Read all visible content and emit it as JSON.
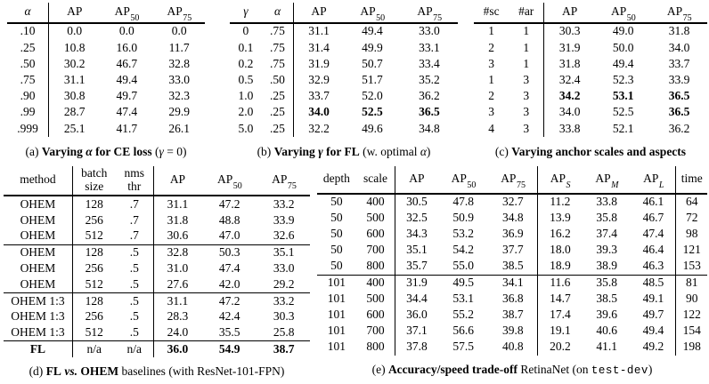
{
  "page": {
    "background": "#ffffff",
    "text_color": "#000000"
  },
  "panels": [
    {
      "id": "a",
      "headers": [
        {
          "t": "α",
          "i": true
        },
        {
          "t": "AP"
        },
        {
          "t": "AP",
          "sub": "50"
        },
        {
          "t": "AP",
          "sub": "75"
        }
      ],
      "col_borders": [
        0
      ],
      "rules_after": [],
      "bold": {},
      "rows": [
        [
          ".10",
          "0.0",
          "0.0",
          "0.0"
        ],
        [
          ".25",
          "10.8",
          "16.0",
          "11.7"
        ],
        [
          ".50",
          "30.2",
          "46.7",
          "32.8"
        ],
        [
          ".75",
          "31.1",
          "49.4",
          "33.0"
        ],
        [
          ".90",
          "30.8",
          "49.7",
          "32.3"
        ],
        [
          ".99",
          "28.7",
          "47.4",
          "29.9"
        ],
        [
          ".999",
          "25.1",
          "41.7",
          "26.1"
        ]
      ],
      "caption": [
        {
          "t": "(a) "
        },
        {
          "t": "Varying ",
          "b": true
        },
        {
          "t": "α",
          "b": true,
          "i": true
        },
        {
          "t": " for CE loss",
          "b": true
        },
        {
          "t": " ("
        },
        {
          "t": "γ",
          "i": true
        },
        {
          "t": " = 0)"
        }
      ]
    },
    {
      "id": "b",
      "headers": [
        {
          "t": "γ",
          "i": true
        },
        {
          "t": "α",
          "i": true
        },
        {
          "t": "AP"
        },
        {
          "t": "AP",
          "sub": "50"
        },
        {
          "t": "AP",
          "sub": "75"
        }
      ],
      "col_borders": [
        1
      ],
      "rules_after": [],
      "bold": {
        "5": [
          2,
          3,
          4
        ]
      },
      "rows": [
        [
          "0",
          ".75",
          "31.1",
          "49.4",
          "33.0"
        ],
        [
          "0.1",
          ".75",
          "31.4",
          "49.9",
          "33.1"
        ],
        [
          "0.2",
          ".75",
          "31.9",
          "50.7",
          "33.4"
        ],
        [
          "0.5",
          ".50",
          "32.9",
          "51.7",
          "35.2"
        ],
        [
          "1.0",
          ".25",
          "33.7",
          "52.0",
          "36.2"
        ],
        [
          "2.0",
          ".25",
          "34.0",
          "52.5",
          "36.5"
        ],
        [
          "5.0",
          ".25",
          "32.2",
          "49.6",
          "34.8"
        ]
      ],
      "caption": [
        {
          "t": "(b) "
        },
        {
          "t": "Varying ",
          "b": true
        },
        {
          "t": "γ",
          "b": true,
          "i": true
        },
        {
          "t": " for FL",
          "b": true
        },
        {
          "t": " (w. optimal "
        },
        {
          "t": "α",
          "i": true
        },
        {
          "t": ")"
        }
      ]
    },
    {
      "id": "c",
      "headers": [
        {
          "t": "#sc"
        },
        {
          "t": "#ar"
        },
        {
          "t": "AP"
        },
        {
          "t": "AP",
          "sub": "50"
        },
        {
          "t": "AP",
          "sub": "75"
        }
      ],
      "col_borders": [
        1
      ],
      "rules_after": [],
      "bold": {
        "4": [
          2,
          3,
          4
        ],
        "5": [
          4
        ]
      },
      "rows": [
        [
          "1",
          "1",
          "30.3",
          "49.0",
          "31.8"
        ],
        [
          "2",
          "1",
          "31.9",
          "50.0",
          "34.0"
        ],
        [
          "3",
          "1",
          "31.8",
          "49.4",
          "33.7"
        ],
        [
          "1",
          "3",
          "32.4",
          "52.3",
          "33.9"
        ],
        [
          "2",
          "3",
          "34.2",
          "53.1",
          "36.5"
        ],
        [
          "3",
          "3",
          "34.0",
          "52.5",
          "36.5"
        ],
        [
          "4",
          "3",
          "33.8",
          "52.1",
          "36.2"
        ]
      ],
      "caption": [
        {
          "t": "(c) "
        },
        {
          "t": "Varying anchor scales and aspects",
          "b": true
        }
      ]
    },
    {
      "id": "d",
      "headers": [
        {
          "t": "method"
        },
        {
          "lines": [
            "batch",
            "size"
          ]
        },
        {
          "lines": [
            "nms",
            "thr"
          ]
        },
        {
          "t": "AP"
        },
        {
          "t": "AP",
          "sub": "50"
        },
        {
          "t": "AP",
          "sub": "75"
        }
      ],
      "col_borders": [
        0,
        2
      ],
      "rules_after": [
        2,
        5,
        8
      ],
      "bold": {
        "9": [
          0,
          3,
          4,
          5
        ]
      },
      "rows": [
        [
          "OHEM",
          "128",
          ".7",
          "31.1",
          "47.2",
          "33.2"
        ],
        [
          "OHEM",
          "256",
          ".7",
          "31.8",
          "48.8",
          "33.9"
        ],
        [
          "OHEM",
          "512",
          ".7",
          "30.6",
          "47.0",
          "32.6"
        ],
        [
          "OHEM",
          "128",
          ".5",
          "32.8",
          "50.3",
          "35.1"
        ],
        [
          "OHEM",
          "256",
          ".5",
          "31.0",
          "47.4",
          "33.0"
        ],
        [
          "OHEM",
          "512",
          ".5",
          "27.6",
          "42.0",
          "29.2"
        ],
        [
          "OHEM 1:3",
          "128",
          ".5",
          "31.1",
          "47.2",
          "33.2"
        ],
        [
          "OHEM 1:3",
          "256",
          ".5",
          "28.3",
          "42.4",
          "30.3"
        ],
        [
          "OHEM 1:3",
          "512",
          ".5",
          "24.0",
          "35.5",
          "25.8"
        ],
        [
          "FL",
          "n/a",
          "n/a",
          "36.0",
          "54.9",
          "38.7"
        ]
      ],
      "caption": [
        {
          "t": "(d) "
        },
        {
          "t": "FL",
          "b": true
        },
        {
          "t": " "
        },
        {
          "t": "vs.",
          "b": true,
          "i": true
        },
        {
          "t": " OHEM",
          "b": true
        },
        {
          "t": " baselines (with ResNet-101-FPN)"
        }
      ]
    },
    {
      "id": "e",
      "headers": [
        {
          "t": "depth"
        },
        {
          "t": "scale"
        },
        {
          "t": "AP"
        },
        {
          "t": "AP",
          "sub": "50"
        },
        {
          "t": "AP",
          "sub": "75"
        },
        {
          "t": "AP",
          "sub": "S",
          "subi": true
        },
        {
          "t": "AP",
          "sub": "M",
          "subi": true
        },
        {
          "t": "AP",
          "sub": "L",
          "subi": true
        },
        {
          "t": "time"
        }
      ],
      "col_borders": [
        1,
        4,
        7
      ],
      "rules_after": [
        4
      ],
      "bold": {},
      "rows": [
        [
          "50",
          "400",
          "30.5",
          "47.8",
          "32.7",
          "11.2",
          "33.8",
          "46.1",
          "64"
        ],
        [
          "50",
          "500",
          "32.5",
          "50.9",
          "34.8",
          "13.9",
          "35.8",
          "46.7",
          "72"
        ],
        [
          "50",
          "600",
          "34.3",
          "53.2",
          "36.9",
          "16.2",
          "37.4",
          "47.4",
          "98"
        ],
        [
          "50",
          "700",
          "35.1",
          "54.2",
          "37.7",
          "18.0",
          "39.3",
          "46.4",
          "121"
        ],
        [
          "50",
          "800",
          "35.7",
          "55.0",
          "38.5",
          "18.9",
          "38.9",
          "46.3",
          "153"
        ],
        [
          "101",
          "400",
          "31.9",
          "49.5",
          "34.1",
          "11.6",
          "35.8",
          "48.5",
          "81"
        ],
        [
          "101",
          "500",
          "34.4",
          "53.1",
          "36.8",
          "14.7",
          "38.5",
          "49.1",
          "90"
        ],
        [
          "101",
          "600",
          "36.0",
          "55.2",
          "38.7",
          "17.4",
          "39.6",
          "49.7",
          "122"
        ],
        [
          "101",
          "700",
          "37.1",
          "56.6",
          "39.8",
          "19.1",
          "40.6",
          "49.4",
          "154"
        ],
        [
          "101",
          "800",
          "37.8",
          "57.5",
          "40.8",
          "20.2",
          "41.1",
          "49.2",
          "198"
        ]
      ],
      "caption": [
        {
          "t": "(e) "
        },
        {
          "t": "Accuracy/speed trade-off",
          "b": true
        },
        {
          "t": " RetinaNet (on "
        },
        {
          "t": "test-dev",
          "mono": true
        },
        {
          "t": ")"
        }
      ]
    }
  ]
}
